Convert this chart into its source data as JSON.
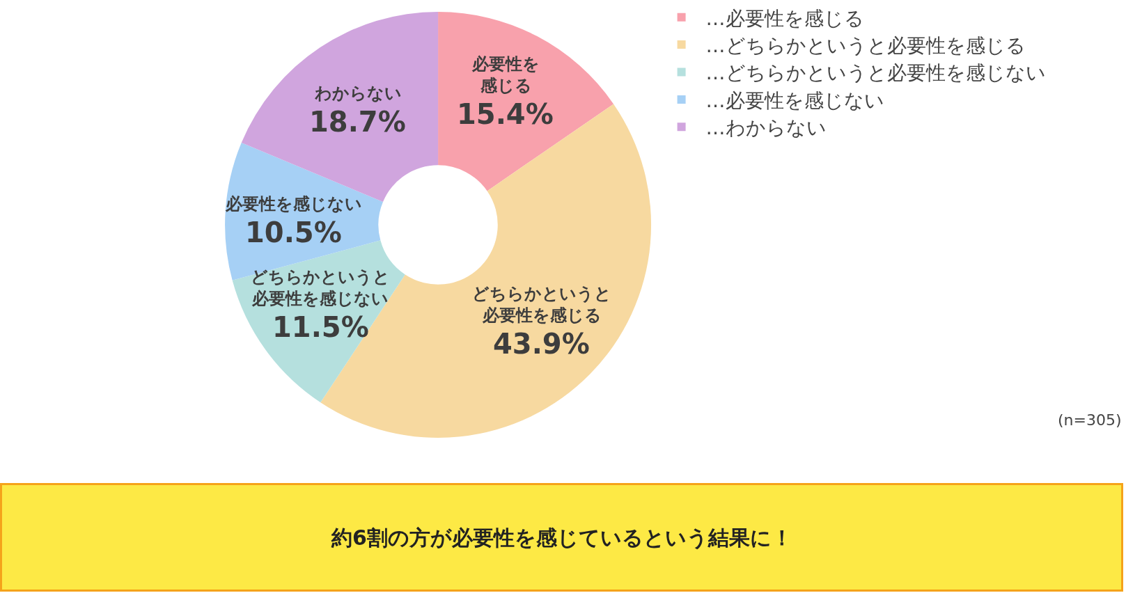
{
  "chart_data": {
    "type": "donut",
    "categories": [
      "…必要性を感じる",
      "…どちらかというと必要性を感じる",
      "…どちらかというと必要性を感じない",
      "…必要性を感じない",
      "…わからない"
    ],
    "values": [
      15.4,
      43.9,
      11.5,
      10.5,
      18.7
    ],
    "colors": [
      "#f8a1ac",
      "#f7d9a0",
      "#b5e0de",
      "#a6d0f5",
      "#d0a5de"
    ],
    "value_labels": [
      "必要性を感じる\n15.4%",
      "どちらかというと必要性を感じる\n43.9%",
      "どちらかというと必要性を感じない\n11.5%",
      "必要性を感じない\n10.5%",
      "わからない\n18.7%"
    ],
    "legend": "top right",
    "annotations": [
      "(n=305)",
      "約6割の方が必要性を感じているという結果に！"
    ]
  }
}
